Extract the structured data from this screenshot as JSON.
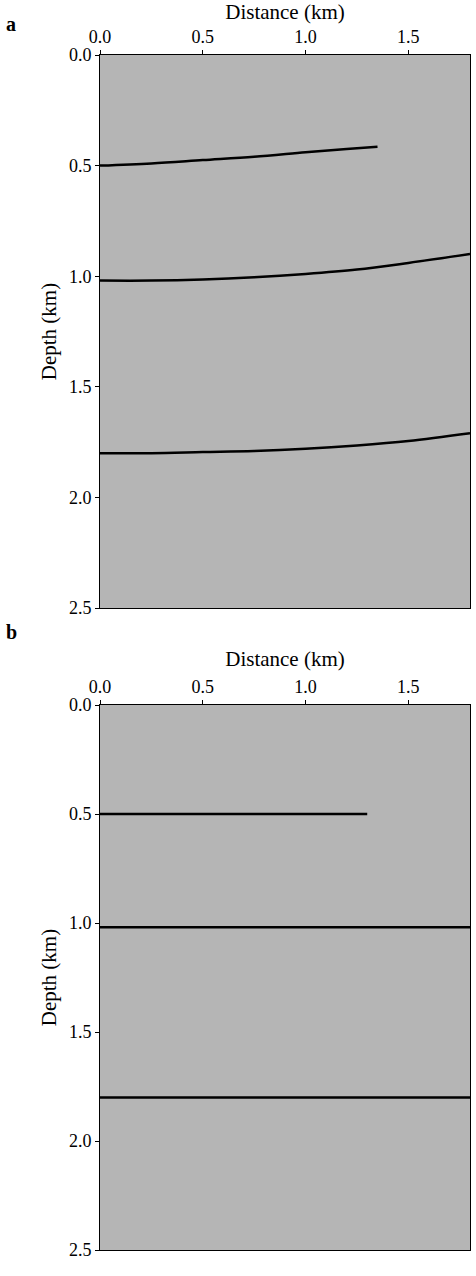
{
  "chart_data": [
    {
      "type": "line",
      "panel_label": "a",
      "x_label": "Distance (km)",
      "y_label": "Depth (km)",
      "xlim": [
        0,
        1.8
      ],
      "ylim": [
        2.5,
        0
      ],
      "xticks": [
        {
          "value": 0,
          "label": "0.0"
        },
        0.5,
        {
          "value": 1,
          "label": "1.0"
        },
        1.5
      ],
      "yticks": [
        {
          "value": 0,
          "label": "0.0"
        },
        0.5,
        {
          "value": 1,
          "label": "1.0"
        },
        1.5,
        {
          "value": 2,
          "label": "2.0"
        },
        2.5
      ],
      "grid": false,
      "series": [
        {
          "color": "#000000",
          "x": [
            0,
            0.25,
            0.5,
            0.75,
            1.0,
            1.2,
            1.35
          ],
          "values": [
            0.5,
            0.49,
            0.475,
            0.46,
            0.44,
            0.425,
            0.415
          ]
        },
        {
          "color": "#000000",
          "x": [
            0,
            0.25,
            0.5,
            0.75,
            1.0,
            1.25,
            1.5,
            1.8
          ],
          "values": [
            1.02,
            1.02,
            1.015,
            1.005,
            0.99,
            0.97,
            0.94,
            0.9
          ]
        },
        {
          "color": "#000000",
          "x": [
            0,
            0.25,
            0.5,
            0.75,
            1.0,
            1.25,
            1.5,
            1.8
          ],
          "values": [
            1.8,
            1.8,
            1.795,
            1.79,
            1.78,
            1.765,
            1.745,
            1.71
          ]
        }
      ]
    },
    {
      "type": "line",
      "panel_label": "b",
      "x_label": "Distance (km)",
      "y_label": "Depth (km)",
      "xlim": [
        0,
        1.8
      ],
      "ylim": [
        2.5,
        0
      ],
      "xticks": [
        {
          "value": 0,
          "label": "0.0"
        },
        0.5,
        {
          "value": 1,
          "label": "1.0"
        },
        1.5
      ],
      "yticks": [
        {
          "value": 0,
          "label": "0.0"
        },
        0.5,
        {
          "value": 1,
          "label": "1.0"
        },
        1.5,
        {
          "value": 2,
          "label": "2.0"
        },
        2.5
      ],
      "grid": false,
      "series": [
        {
          "color": "#000000",
          "x": [
            0,
            0.65,
            1.3
          ],
          "values": [
            0.5,
            0.5,
            0.5
          ]
        },
        {
          "color": "#000000",
          "x": [
            0,
            0.9,
            1.8
          ],
          "values": [
            1.02,
            1.02,
            1.02
          ]
        },
        {
          "color": "#000000",
          "x": [
            0,
            0.9,
            1.8
          ],
          "values": [
            1.8,
            1.8,
            1.8
          ]
        }
      ]
    }
  ]
}
